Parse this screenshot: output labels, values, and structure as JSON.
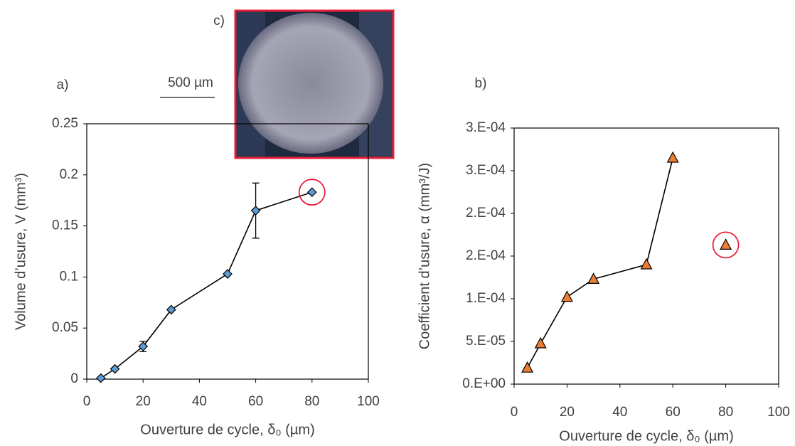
{
  "chart_data": [
    {
      "type": "line",
      "panel_label": "a)",
      "x_label": "Ouverture de cycle, δ₀ (µm)",
      "y_label": "Volume d’usure, V (mm³)",
      "x": [
        5,
        10,
        20,
        30,
        50,
        60,
        80
      ],
      "series": [
        {
          "color": "#5b9bd5",
          "marker": "diamond",
          "line": true,
          "values": [
            0.001,
            0.01,
            0.032,
            0.068,
            0.103,
            0.165,
            0.183
          ],
          "errors": [
            null,
            null,
            0.005,
            null,
            null,
            0.027,
            null
          ]
        }
      ],
      "highlight": {
        "index": 6,
        "color": "#e8203a"
      },
      "xlim": [
        0,
        100
      ],
      "xticks": [
        0,
        20,
        40,
        60,
        80,
        100
      ],
      "ylim": [
        0,
        0.25
      ],
      "yticks": [
        0,
        0.05,
        0.1,
        0.15,
        0.2,
        0.25
      ],
      "grid": false
    },
    {
      "type": "line",
      "panel_label": "b)",
      "x_label": "Ouverture de cycle, δ₀ (µm)",
      "y_label": "Coefficient d’usure, α (mm³/J)",
      "x": [
        5,
        10,
        20,
        30,
        50,
        60,
        80
      ],
      "series": [
        {
          "color": "#ed7d31",
          "marker": "triangle",
          "line": true,
          "values": [
            1.9e-05,
            4.75e-05,
            0.000102,
            0.000123,
            0.00014,
            0.000265,
            null
          ]
        },
        {
          "color": "#ed7d31",
          "marker": "triangle",
          "line": false,
          "values": [
            null,
            null,
            null,
            null,
            null,
            null,
            0.000163
          ]
        }
      ],
      "highlight": {
        "index": 6,
        "color": "#e8203a"
      },
      "xlim": [
        0,
        100
      ],
      "xticks": [
        0,
        20,
        40,
        60,
        80,
        100
      ],
      "ylim": [
        0,
        0.0003
      ],
      "yticks": [
        {
          "value": 0,
          "label": "0.E+00"
        },
        {
          "value": 5e-05,
          "label": "5.E-05"
        },
        {
          "value": 0.0001,
          "label": "1.E-04"
        },
        {
          "value": 0.00015,
          "label": "2.E-04"
        },
        {
          "value": 0.0002,
          "label": "2.E-04"
        },
        {
          "value": 0.00025,
          "label": "3.E-04"
        },
        {
          "value": 0.0003,
          "label": "3.E-04"
        }
      ],
      "grid": false
    }
  ],
  "inset": {
    "label": "c)",
    "scale_bar": "500 µm"
  }
}
